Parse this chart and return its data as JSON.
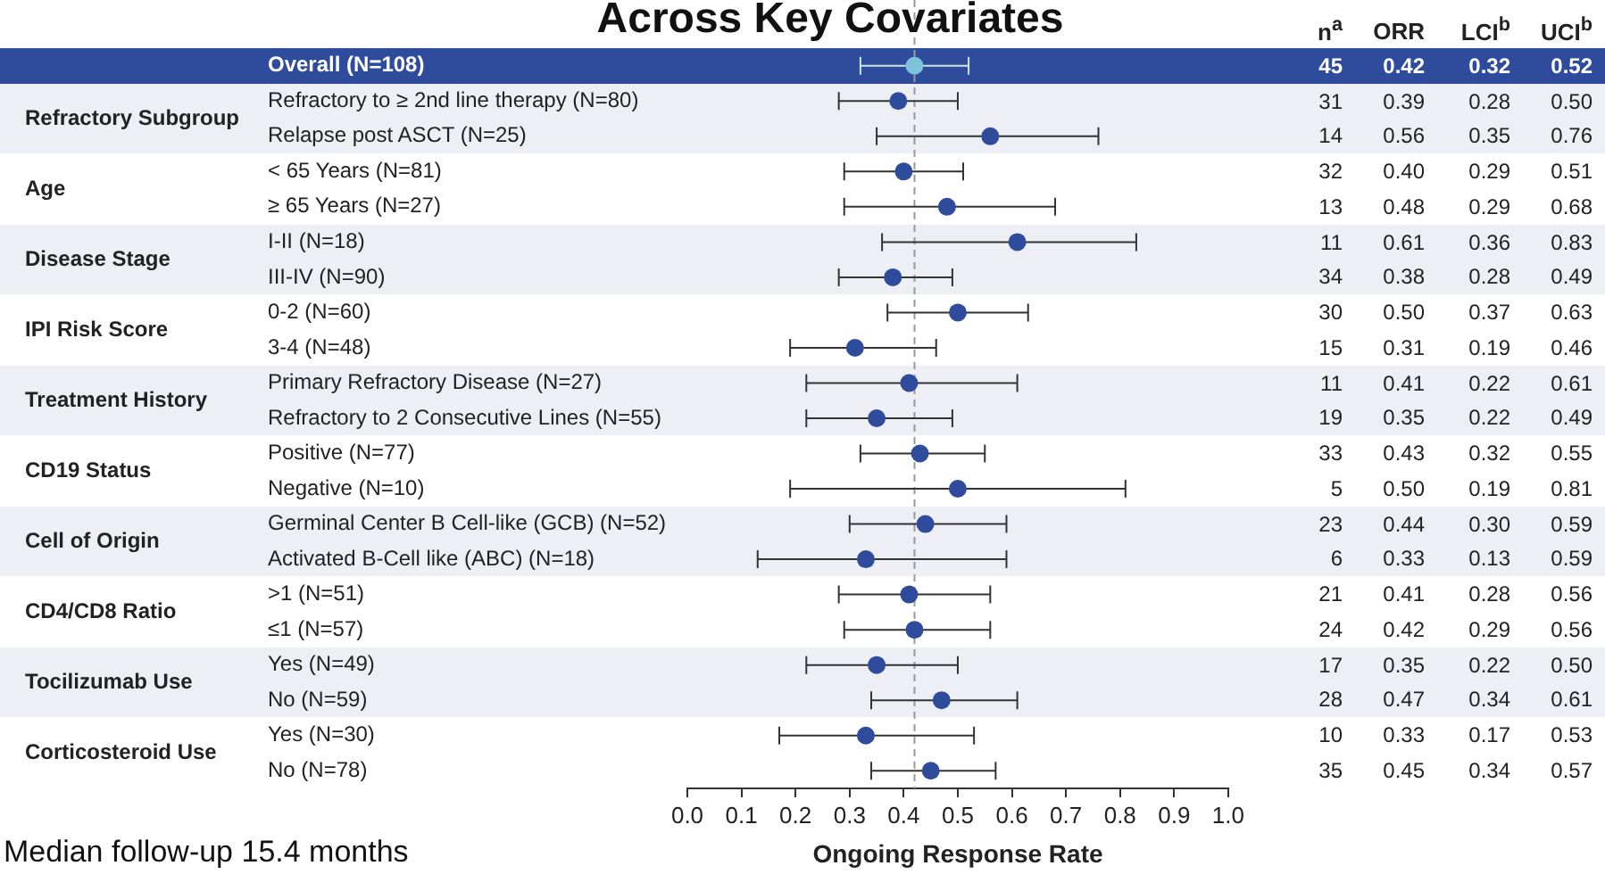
{
  "chart_data": [
    {
      "type": "scatter",
      "orientation": "horizontal",
      "title": "Across Key Covariates",
      "xlabel": "Ongoing Response Rate",
      "categories": [
        "Overall (N=108)",
        "Refractory to ≥ 2nd line therapy (N=80)",
        "Relapse post ASCT (N=25)",
        "< 65 Years (N=81)",
        "≥ 65 Years (N=27)",
        "I-II (N=18)",
        "III-IV (N=90)",
        "0-2 (N=60)",
        "3-4 (N=48)",
        "Primary Refractory Disease (N=27)",
        "Refractory to 2 Consecutive Lines (N=55)",
        "Positive (N=77)",
        "Negative (N=10)",
        "Germinal Center B Cell-like (GCB) (N=52)",
        "Activated B-Cell like (ABC) (N=18)",
        ">1 (N=51)",
        "≤1 (N=57)",
        "Yes (N=49)",
        "No (N=59)",
        "Yes (N=30)",
        "No (N=78)"
      ],
      "values": [
        0.42,
        0.39,
        0.56,
        0.4,
        0.48,
        0.61,
        0.38,
        0.5,
        0.31,
        0.41,
        0.35,
        0.43,
        0.5,
        0.44,
        0.33,
        0.41,
        0.42,
        0.35,
        0.47,
        0.33,
        0.45
      ],
      "errors": [
        [
          0.32,
          0.52
        ],
        [
          0.28,
          0.5
        ],
        [
          0.35,
          0.76
        ],
        [
          0.29,
          0.51
        ],
        [
          0.29,
          0.68
        ],
        [
          0.36,
          0.83
        ],
        [
          0.28,
          0.49
        ],
        [
          0.37,
          0.63
        ],
        [
          0.19,
          0.46
        ],
        [
          0.22,
          0.61
        ],
        [
          0.22,
          0.49
        ],
        [
          0.32,
          0.55
        ],
        [
          0.19,
          0.81
        ],
        [
          0.3,
          0.59
        ],
        [
          0.13,
          0.59
        ],
        [
          0.28,
          0.56
        ],
        [
          0.29,
          0.56
        ],
        [
          0.22,
          0.5
        ],
        [
          0.34,
          0.61
        ],
        [
          0.17,
          0.53
        ],
        [
          0.34,
          0.57
        ]
      ],
      "colors": [
        "#7ec3dc",
        "#2f4b9c",
        "#2f4b9c",
        "#2f4b9c",
        "#2f4b9c",
        "#2f4b9c",
        "#2f4b9c",
        "#2f4b9c",
        "#2f4b9c",
        "#2f4b9c",
        "#2f4b9c",
        "#2f4b9c",
        "#2f4b9c",
        "#2f4b9c",
        "#2f4b9c",
        "#2f4b9c",
        "#2f4b9c",
        "#2f4b9c",
        "#2f4b9c",
        "#2f4b9c",
        "#2f4b9c"
      ],
      "marker": "circle",
      "xlim": [
        0,
        1
      ],
      "xticks": [
        {
          "value": 0,
          "label": "0.0"
        },
        {
          "value": 0.1,
          "label": "0.1"
        },
        {
          "value": 0.2,
          "label": "0.2"
        },
        {
          "value": 0.3,
          "label": "0.3"
        },
        {
          "value": 0.4,
          "label": "0.4"
        },
        {
          "value": 0.5,
          "label": "0.5"
        },
        {
          "value": 0.6,
          "label": "0.6"
        },
        {
          "value": 0.7,
          "label": "0.7"
        },
        {
          "value": 0.8,
          "label": "0.8"
        },
        {
          "value": 0.9,
          "label": "0.9"
        },
        {
          "value": 1,
          "label": "1.0"
        }
      ],
      "ref_lines": [
        {
          "axis": "x",
          "value": 0.42,
          "color": "#999999",
          "line_style": "dashed"
        }
      ],
      "bands": [
        {
          "axis": "y",
          "from": "Overall (N=108)",
          "to": "Overall (N=108)",
          "color": "#2f4b9c"
        }
      ],
      "annotations": [
        "Refractory Subgroup",
        "Age",
        "Disease Stage",
        "IPI Risk Score",
        "Treatment History",
        "CD19 Status",
        "Cell of Origin",
        "CD4/CD8 Ratio",
        "Tocilizumab Use",
        "Corticosteroid Use",
        "Median follow-up 15.4 months"
      ]
    },
    {
      "type": "other",
      "annotations": [
        "n$^{a}$",
        "ORR",
        "LCI$^{b}$",
        "UCI$^{b}$",
        "45",
        "0.42",
        "0.32",
        "0.52",
        "31",
        "0.39",
        "0.28",
        "0.50",
        "14",
        "0.56",
        "0.35",
        "0.76",
        "32",
        "0.40",
        "0.29",
        "0.51",
        "13",
        "0.48",
        "0.29",
        "0.68",
        "11",
        "0.61",
        "0.36",
        "0.83",
        "34",
        "0.38",
        "0.28",
        "0.49",
        "30",
        "0.50",
        "0.37",
        "0.63",
        "15",
        "0.31",
        "0.19",
        "0.46",
        "11",
        "0.41",
        "0.22",
        "0.61",
        "19",
        "0.35",
        "0.22",
        "0.49",
        "33",
        "0.43",
        "0.32",
        "0.55",
        "5",
        "0.50",
        "0.19",
        "0.81",
        "23",
        "0.44",
        "0.30",
        "0.59",
        "6",
        "0.33",
        "0.13",
        "0.59",
        "21",
        "0.41",
        "0.28",
        "0.56",
        "24",
        "0.42",
        "0.29",
        "0.56",
        "17",
        "0.35",
        "0.22",
        "0.50",
        "28",
        "0.47",
        "0.34",
        "0.61",
        "10",
        "0.33",
        "0.17",
        "0.53",
        "35",
        "0.45",
        "0.34",
        "0.57"
      ]
    }
  ]
}
